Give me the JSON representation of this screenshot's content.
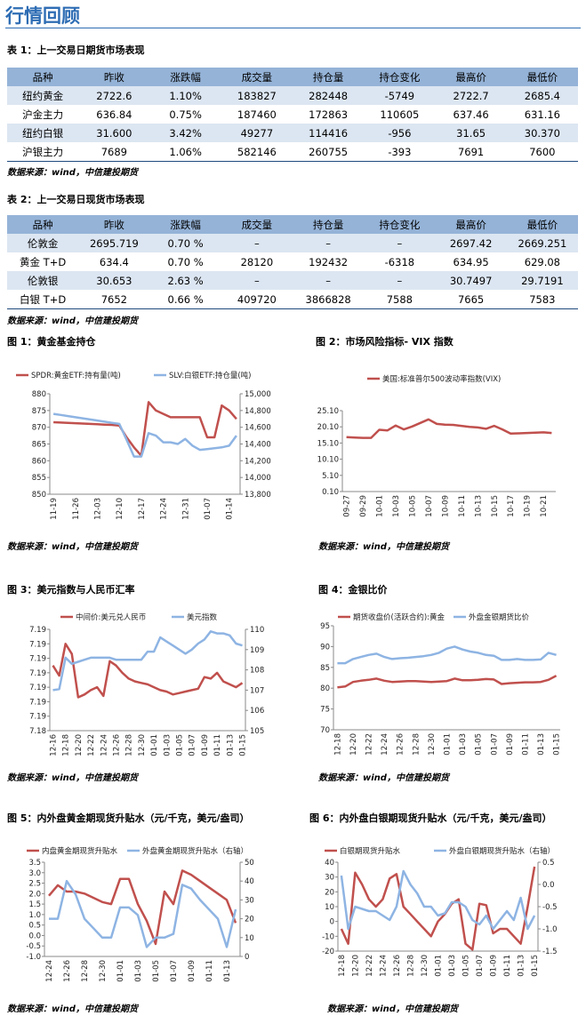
{
  "title": "行情回顾",
  "tables": [
    {
      "caption": "表 1：上一交易日期货市场表现",
      "headers": [
        "品种",
        "昨收",
        "涨跌幅",
        "成交量",
        "持仓量",
        "持仓变化",
        "最高价",
        "最低价"
      ],
      "rows": [
        [
          "纽约黄金",
          "2722.6",
          "1.10%",
          "183827",
          "282448",
          "-5749",
          "2722.7",
          "2685.4"
        ],
        [
          "沪金主力",
          "636.84",
          "0.75%",
          "187460",
          "172863",
          "110605",
          "637.46",
          "631.16"
        ],
        [
          "纽约白银",
          "31.600",
          "3.42%",
          "49277",
          "114416",
          "-956",
          "31.65",
          "30.370"
        ],
        [
          "沪银主力",
          "7689",
          "1.06%",
          "582146",
          "260755",
          "-393",
          "7691",
          "7600"
        ]
      ],
      "source": "数据来源：wind，中信建投期货"
    },
    {
      "caption": "表 2：上一交易日现货市场表现",
      "headers": [
        "品种",
        "昨收",
        "涨跌幅",
        "成交量",
        "持仓量",
        "持仓变化",
        "最高价",
        "最低价"
      ],
      "rows": [
        [
          "伦敦金",
          "2695.719",
          "0.70 %",
          "–",
          "–",
          "–",
          "2697.42",
          "2669.251"
        ],
        [
          "黄金 T+D",
          "634.4",
          "0.70 %",
          "28120",
          "192432",
          "-6318",
          "634.95",
          "629.08"
        ],
        [
          "伦敦银",
          "30.653",
          "2.63 %",
          "–",
          "–",
          "–",
          "30.7497",
          "29.7191"
        ],
        [
          "白银 T+D",
          "7652",
          "0.66 %",
          "409720",
          "3866828",
          "7588",
          "7665",
          "7583"
        ]
      ],
      "source": "数据来源：wind，中信建投期货"
    }
  ],
  "chart_data": [
    {
      "type": "line",
      "title": "图 1：黄金基金持仓",
      "source": "数据来源：wind，中信建投期货",
      "categories": [
        "11-19",
        null,
        null,
        "11-26",
        null,
        null,
        "12-03",
        null,
        null,
        "12-10",
        null,
        null,
        "12-17",
        null,
        null,
        "12-24",
        null,
        null,
        "12-31",
        null,
        null,
        "01-07",
        null,
        null,
        "01-14",
        null
      ],
      "series": [
        {
          "name": "SPDR:黄金ETF:持有量(吨)",
          "color": "#c0504d",
          "values": [
            871.5,
            871.4,
            871.3,
            871.2,
            871.1,
            871.0,
            870.9,
            870.8,
            870.7,
            870.5,
            867,
            864,
            861.5,
            877.5,
            875,
            874,
            873,
            873,
            873,
            873,
            873,
            867,
            867,
            876.5,
            875,
            872.5
          ]
        },
        {
          "name": "SLV:白银ETF:持仓量(吨)",
          "color": "#8eb4e3",
          "axis": "y2",
          "values": [
            14760,
            14747,
            14733,
            14720,
            14707,
            14693,
            14680,
            14667,
            14653,
            14640,
            14450,
            14250,
            14250,
            14530,
            14500,
            14420,
            14420,
            14400,
            14460,
            14380,
            14330,
            14340,
            14350,
            14360,
            14380,
            14500
          ]
        }
      ],
      "ylim": [
        850,
        880
      ],
      "yticks": [
        850,
        855,
        860,
        865,
        870,
        875,
        880
      ],
      "y2lim": [
        13800,
        15000
      ],
      "y2ticks": [
        {
          "value": 13800,
          "label": "13,800"
        },
        {
          "value": 14000,
          "label": "14,000"
        },
        {
          "value": 14200,
          "label": "14,200"
        },
        {
          "value": 14400,
          "label": "14,400"
        },
        {
          "value": 14600,
          "label": "14,600"
        },
        {
          "value": 14800,
          "label": "14,800"
        },
        {
          "value": 15000,
          "label": "15,000"
        }
      ]
    },
    {
      "type": "line",
      "title": "图 2：市场风险指标- VIX 指数",
      "source": "数据来源：wind，中信建投期货",
      "categories": [
        "09-27",
        null,
        "09-29",
        null,
        "10-01",
        null,
        "10-03",
        null,
        "10-05",
        null,
        "10-07",
        null,
        "10-09",
        null,
        "10-11",
        null,
        "10-13",
        null,
        "10-15",
        null,
        "10-17",
        null,
        "10-19",
        null,
        "10-21",
        null
      ],
      "series": [
        {
          "name": "美国:标准普尔500波动率指数(VIX)",
          "color": "#c0504d",
          "values": [
            16.9,
            16.8,
            16.7,
            16.7,
            19.2,
            19.0,
            20.5,
            19.3,
            20.2,
            21.3,
            22.4,
            21.0,
            20.8,
            20.7,
            20.4,
            20.1,
            19.9,
            19.5,
            20.4,
            19.3,
            18.0,
            18.1,
            18.2,
            18.3,
            18.4,
            18.2
          ]
        }
      ],
      "ylim": [
        0.1,
        25.1
      ],
      "yticks": [
        {
          "value": 0.1,
          "label": "0.10"
        },
        {
          "value": 5.1,
          "label": "5.10"
        },
        {
          "value": 10.1,
          "label": "10.10"
        },
        {
          "value": 15.1,
          "label": "15.10"
        },
        {
          "value": 20.1,
          "label": "20.10"
        },
        {
          "value": 25.1,
          "label": "25.10"
        }
      ]
    },
    {
      "type": "line",
      "title": "图 3：美元指数与人民币汇率",
      "source": "数据来源：wind，中信建投期货",
      "categories": [
        "12-16",
        null,
        "12-18",
        null,
        "12-20",
        null,
        "12-22",
        null,
        "12-24",
        null,
        "12-26",
        null,
        "12-28",
        null,
        "12-30",
        null,
        "01-01",
        null,
        "01-03",
        null,
        "01-05",
        null,
        "01-07",
        null,
        "01-09",
        null,
        "01-11",
        null,
        "01-13",
        null,
        "01-15"
      ],
      "series": [
        {
          "name": "中间价:美元兑人民币",
          "color": "#c0504d",
          "values": [
            7.1885,
            7.1878,
            7.19,
            7.1893,
            7.1863,
            7.1865,
            7.1868,
            7.187,
            7.1864,
            7.1888,
            7.1885,
            7.188,
            7.1876,
            7.1874,
            7.1873,
            7.1872,
            7.187,
            7.1868,
            7.1867,
            7.1865,
            7.1866,
            7.1867,
            7.1868,
            7.1869,
            7.1877,
            7.1876,
            7.188,
            7.1874,
            7.1872,
            7.187,
            7.1873
          ]
        },
        {
          "name": "美元指数",
          "color": "#8eb4e3",
          "axis": "y2",
          "values": [
            107.0,
            107.05,
            108.6,
            108.3,
            108.4,
            108.5,
            108.6,
            108.6,
            108.6,
            108.6,
            108.5,
            108.5,
            108.5,
            108.5,
            108.5,
            108.9,
            108.9,
            109.6,
            109.4,
            109.2,
            109.0,
            108.8,
            109.0,
            109.3,
            109.5,
            109.9,
            109.8,
            109.8,
            109.7,
            109.3,
            109.2
          ]
        }
      ],
      "ylim": [
        7.184,
        7.191
      ],
      "yticks": [
        {
          "value": 7.184,
          "label": "7.18"
        },
        {
          "value": 7.185,
          "label": "7.19"
        },
        {
          "value": 7.186,
          "label": "7.19"
        },
        {
          "value": 7.187,
          "label": "7.19"
        },
        {
          "value": 7.188,
          "label": "7.19"
        },
        {
          "value": 7.189,
          "label": "7.19"
        },
        {
          "value": 7.19,
          "label": "7.19"
        },
        {
          "value": 7.191,
          "label": "7.19"
        }
      ],
      "y2lim": [
        105,
        110
      ],
      "y2ticks": [
        105,
        106,
        107,
        108,
        109,
        110
      ]
    },
    {
      "type": "line",
      "title": "图 4：金银比价",
      "source": "数据来源：wind，中信建投期货",
      "categories": [
        "12-18",
        null,
        "12-20",
        null,
        "12-22",
        null,
        "12-24",
        null,
        "12-26",
        null,
        "12-28",
        null,
        "12-30",
        null,
        "01-01",
        null,
        "01-03",
        null,
        "01-05",
        null,
        "01-07",
        null,
        "01-09",
        null,
        "01-11",
        null,
        "01-13",
        null,
        "01-15"
      ],
      "series": [
        {
          "name": "期货收盘价(活跃合约):黄金",
          "color": "#c0504d",
          "values": [
            80.2,
            80.4,
            81.5,
            81.8,
            82.0,
            82.3,
            81.8,
            81.5,
            81.6,
            81.7,
            81.7,
            81.6,
            81.5,
            81.6,
            81.7,
            82.3,
            81.9,
            81.9,
            82.0,
            82.2,
            82.1,
            81.0,
            81.2,
            81.3,
            81.4,
            81.4,
            81.5,
            82.0,
            83.0
          ]
        },
        {
          "name": "外盘金银期货比价",
          "color": "#8eb4e3",
          "values": [
            86.0,
            86.0,
            87.0,
            87.5,
            88.0,
            88.3,
            87.5,
            87.0,
            87.2,
            87.3,
            87.5,
            87.7,
            88.0,
            88.5,
            89.5,
            90.0,
            89.3,
            88.8,
            88.5,
            88.0,
            87.8,
            86.8,
            86.8,
            87.0,
            86.8,
            86.8,
            86.9,
            88.5,
            88.0
          ]
        }
      ],
      "ylim": [
        70,
        95
      ],
      "yticks": [
        70,
        75,
        80,
        85,
        90,
        95
      ]
    },
    {
      "type": "line",
      "title": "图 5：内外盘黄金期现货升贴水（元/千克，美元/盎司）",
      "source": "数据来源：wind，中信建投期货",
      "categories": [
        "12-24",
        null,
        "12-26",
        null,
        "12-28",
        null,
        "12-30",
        null,
        "01-01",
        null,
        "01-03",
        null,
        "01-05",
        null,
        "01-07",
        null,
        "01-09",
        null,
        "01-11",
        null,
        "01-13",
        null
      ],
      "series": [
        {
          "name": "内盘黄金期现货升贴水",
          "color": "#c0504d",
          "values": [
            1.9,
            2.4,
            2.1,
            2.1,
            2.0,
            1.8,
            1.6,
            1.5,
            2.7,
            2.7,
            1.5,
            0.7,
            -0.4,
            2.1,
            1.5,
            3.1,
            2.9,
            2.6,
            2.3,
            2.0,
            1.7,
            0.6
          ]
        },
        {
          "name": "外盘黄金期现货升贴水（右轴）",
          "color": "#8eb4e3",
          "axis": "y2",
          "values": [
            20,
            20,
            40,
            33,
            20,
            15,
            10,
            10,
            26,
            26,
            22,
            5,
            10,
            10,
            12,
            38,
            36,
            30,
            25,
            20,
            5,
            25
          ]
        }
      ],
      "ylim": [
        -1,
        3.5
      ],
      "yticks": [
        {
          "value": -1,
          "label": "-1.0"
        },
        -0.5,
        {
          "value": 0,
          "label": "0.0"
        },
        0.5,
        {
          "value": 1,
          "label": "1.0"
        },
        1.5,
        {
          "value": 2,
          "label": "2.0"
        },
        2.5,
        {
          "value": 3,
          "label": "3.0"
        },
        3.5
      ],
      "y2lim": [
        0,
        50
      ],
      "y2ticks": [
        0,
        10,
        20,
        30,
        40,
        50
      ]
    },
    {
      "type": "line",
      "title": "图 6：内外盘白银期现货升贴水（元/千克，美元/盎司）",
      "source": "数据来源：wind，中信建投期货",
      "categories": [
        "12-18",
        null,
        "12-20",
        null,
        "12-22",
        null,
        "12-24",
        null,
        "12-26",
        null,
        "12-28",
        null,
        "12-30",
        null,
        "01-01",
        null,
        "01-03",
        null,
        "01-05",
        null,
        "01-07",
        null,
        "01-09",
        null,
        "01-11",
        null,
        "01-13",
        null,
        "01-15"
      ],
      "series": [
        {
          "name": "白银期现货升贴水",
          "color": "#c0504d",
          "values": [
            -5,
            -15,
            33,
            25,
            15,
            10,
            15,
            29,
            32,
            10,
            5,
            0,
            -5,
            -10,
            0,
            5,
            12,
            15,
            -15,
            -19,
            12,
            11,
            -8,
            -5,
            -5,
            -10,
            -15,
            10,
            37
          ]
        },
        {
          "name": "外盘白银期现货升贴水（右轴）",
          "color": "#8eb4e3",
          "axis": "y2",
          "values": [
            0.2,
            -1.0,
            -0.5,
            -0.55,
            -0.6,
            -0.6,
            -0.7,
            -0.8,
            -0.5,
            0.3,
            0.0,
            -0.2,
            -0.5,
            -0.5,
            -0.7,
            -0.65,
            -0.4,
            -0.4,
            -0.5,
            -0.8,
            -0.9,
            -0.7,
            -1.0,
            -0.8,
            -0.6,
            -0.8,
            -0.3,
            -1.0,
            -0.7
          ]
        }
      ],
      "ylim": [
        -20,
        40
      ],
      "yticks": [
        -20,
        -10,
        0,
        10,
        20,
        30,
        40
      ],
      "y2lim": [
        -1.5,
        0.5
      ],
      "y2ticks": [
        -1.5,
        {
          "value": -1,
          "label": "-1.0"
        },
        -0.5,
        {
          "value": 0,
          "label": "0.0"
        },
        0.5
      ]
    }
  ]
}
